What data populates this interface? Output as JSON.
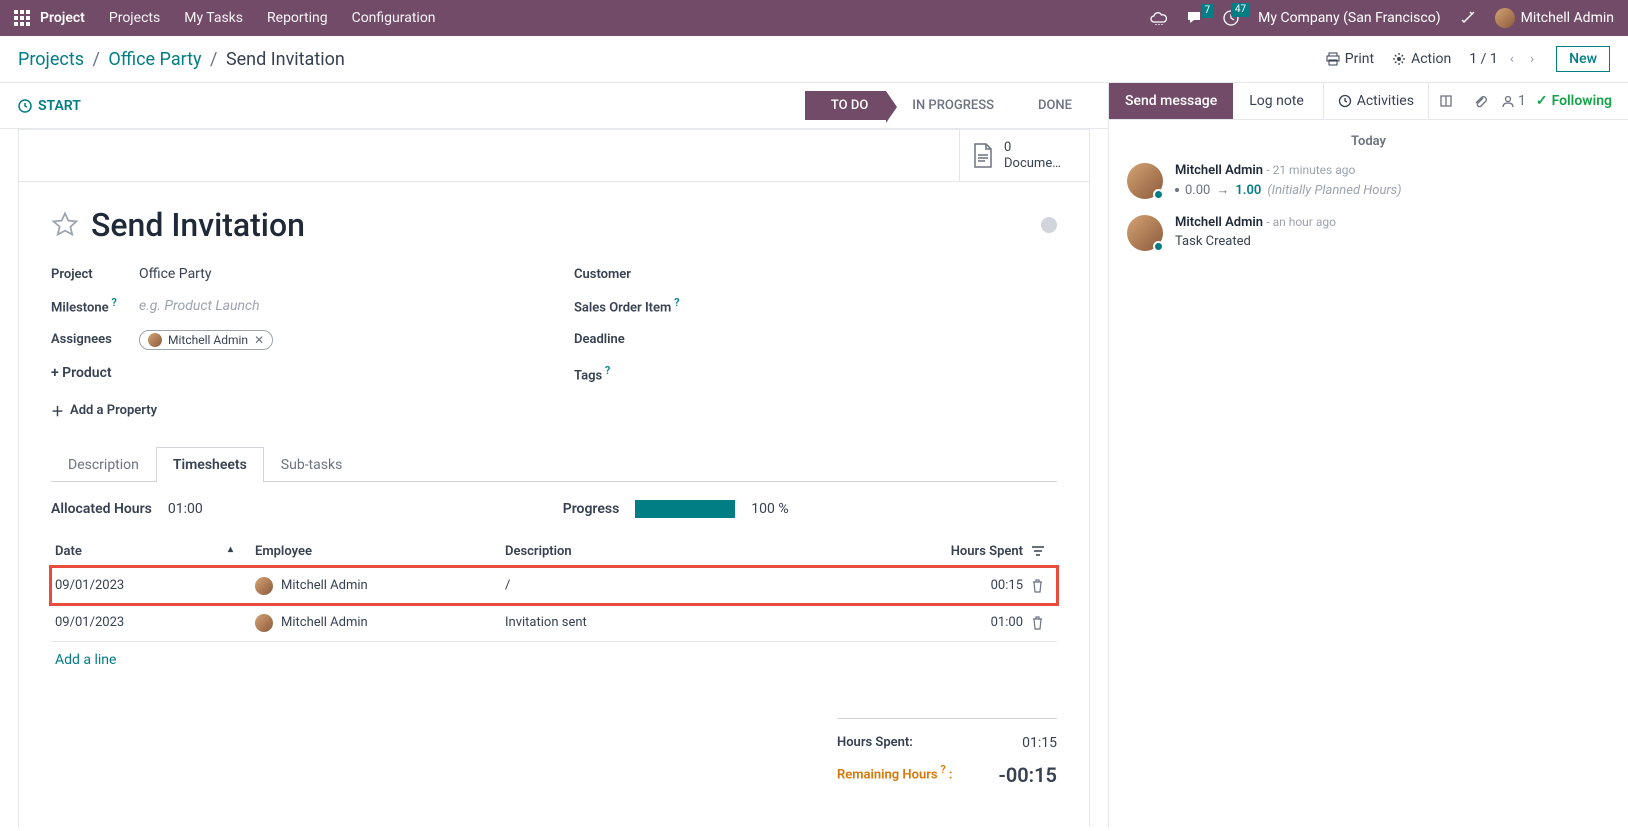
{
  "topbar": {
    "app_name": "Project",
    "menus": [
      "Projects",
      "My Tasks",
      "Reporting",
      "Configuration"
    ],
    "messages_badge": "7",
    "activities_badge": "47",
    "company": "My Company (San Francisco)",
    "user": "Mitchell Admin"
  },
  "cp": {
    "breadcrumb": {
      "root": "Projects",
      "project": "Office Party",
      "task": "Send Invitation"
    },
    "print": "Print",
    "action": "Action",
    "pager": "1 / 1",
    "new": "New"
  },
  "status": {
    "start": "START",
    "stages": [
      "TO DO",
      "IN PROGRESS",
      "DONE"
    ],
    "active": "TO DO"
  },
  "btn_box": {
    "documents_count": "0",
    "documents_label": "Docume…"
  },
  "task": {
    "title": "Send Invitation",
    "fields": {
      "project_label": "Project",
      "project_value": "Office Party",
      "milestone_label": "Milestone",
      "milestone_placeholder": "e.g. Product Launch",
      "assignees_label": "Assignees",
      "assignee_name": "Mitchell Admin",
      "add_product": "+ Product",
      "customer_label": "Customer",
      "soi_label": "Sales Order Item",
      "deadline_label": "Deadline",
      "tags_label": "Tags"
    },
    "add_property": "Add a Property"
  },
  "tabs": {
    "description": "Description",
    "timesheets": "Timesheets",
    "subtasks": "Sub-tasks"
  },
  "timesheets": {
    "allocated_label": "Allocated Hours",
    "allocated_value": "01:00",
    "progress_label": "Progress",
    "progress_pct": "100 %",
    "columns": {
      "date": "Date",
      "employee": "Employee",
      "description": "Description",
      "hours": "Hours Spent"
    },
    "rows": [
      {
        "date": "09/01/2023",
        "employee": "Mitchell Admin",
        "desc": "/",
        "hours": "00:15",
        "highlight": true
      },
      {
        "date": "09/01/2023",
        "employee": "Mitchell Admin",
        "desc": "Invitation sent",
        "hours": "01:00",
        "highlight": false
      }
    ],
    "add_line": "Add a line",
    "totals": {
      "hours_spent_label": "Hours Spent:",
      "hours_spent": "01:15",
      "remaining_label": "Remaining Hours",
      "remaining": "-00:15"
    }
  },
  "chatter": {
    "send_message": "Send message",
    "log_note": "Log note",
    "activities": "Activities",
    "followers": "1",
    "following": "Following",
    "today": "Today",
    "messages": [
      {
        "author": "Mitchell Admin",
        "time": "21 minutes ago",
        "change_old": "0.00",
        "change_new": "1.00",
        "change_note": "(Initially Planned Hours)"
      },
      {
        "author": "Mitchell Admin",
        "time": "an hour ago",
        "text": "Task Created"
      }
    ]
  }
}
